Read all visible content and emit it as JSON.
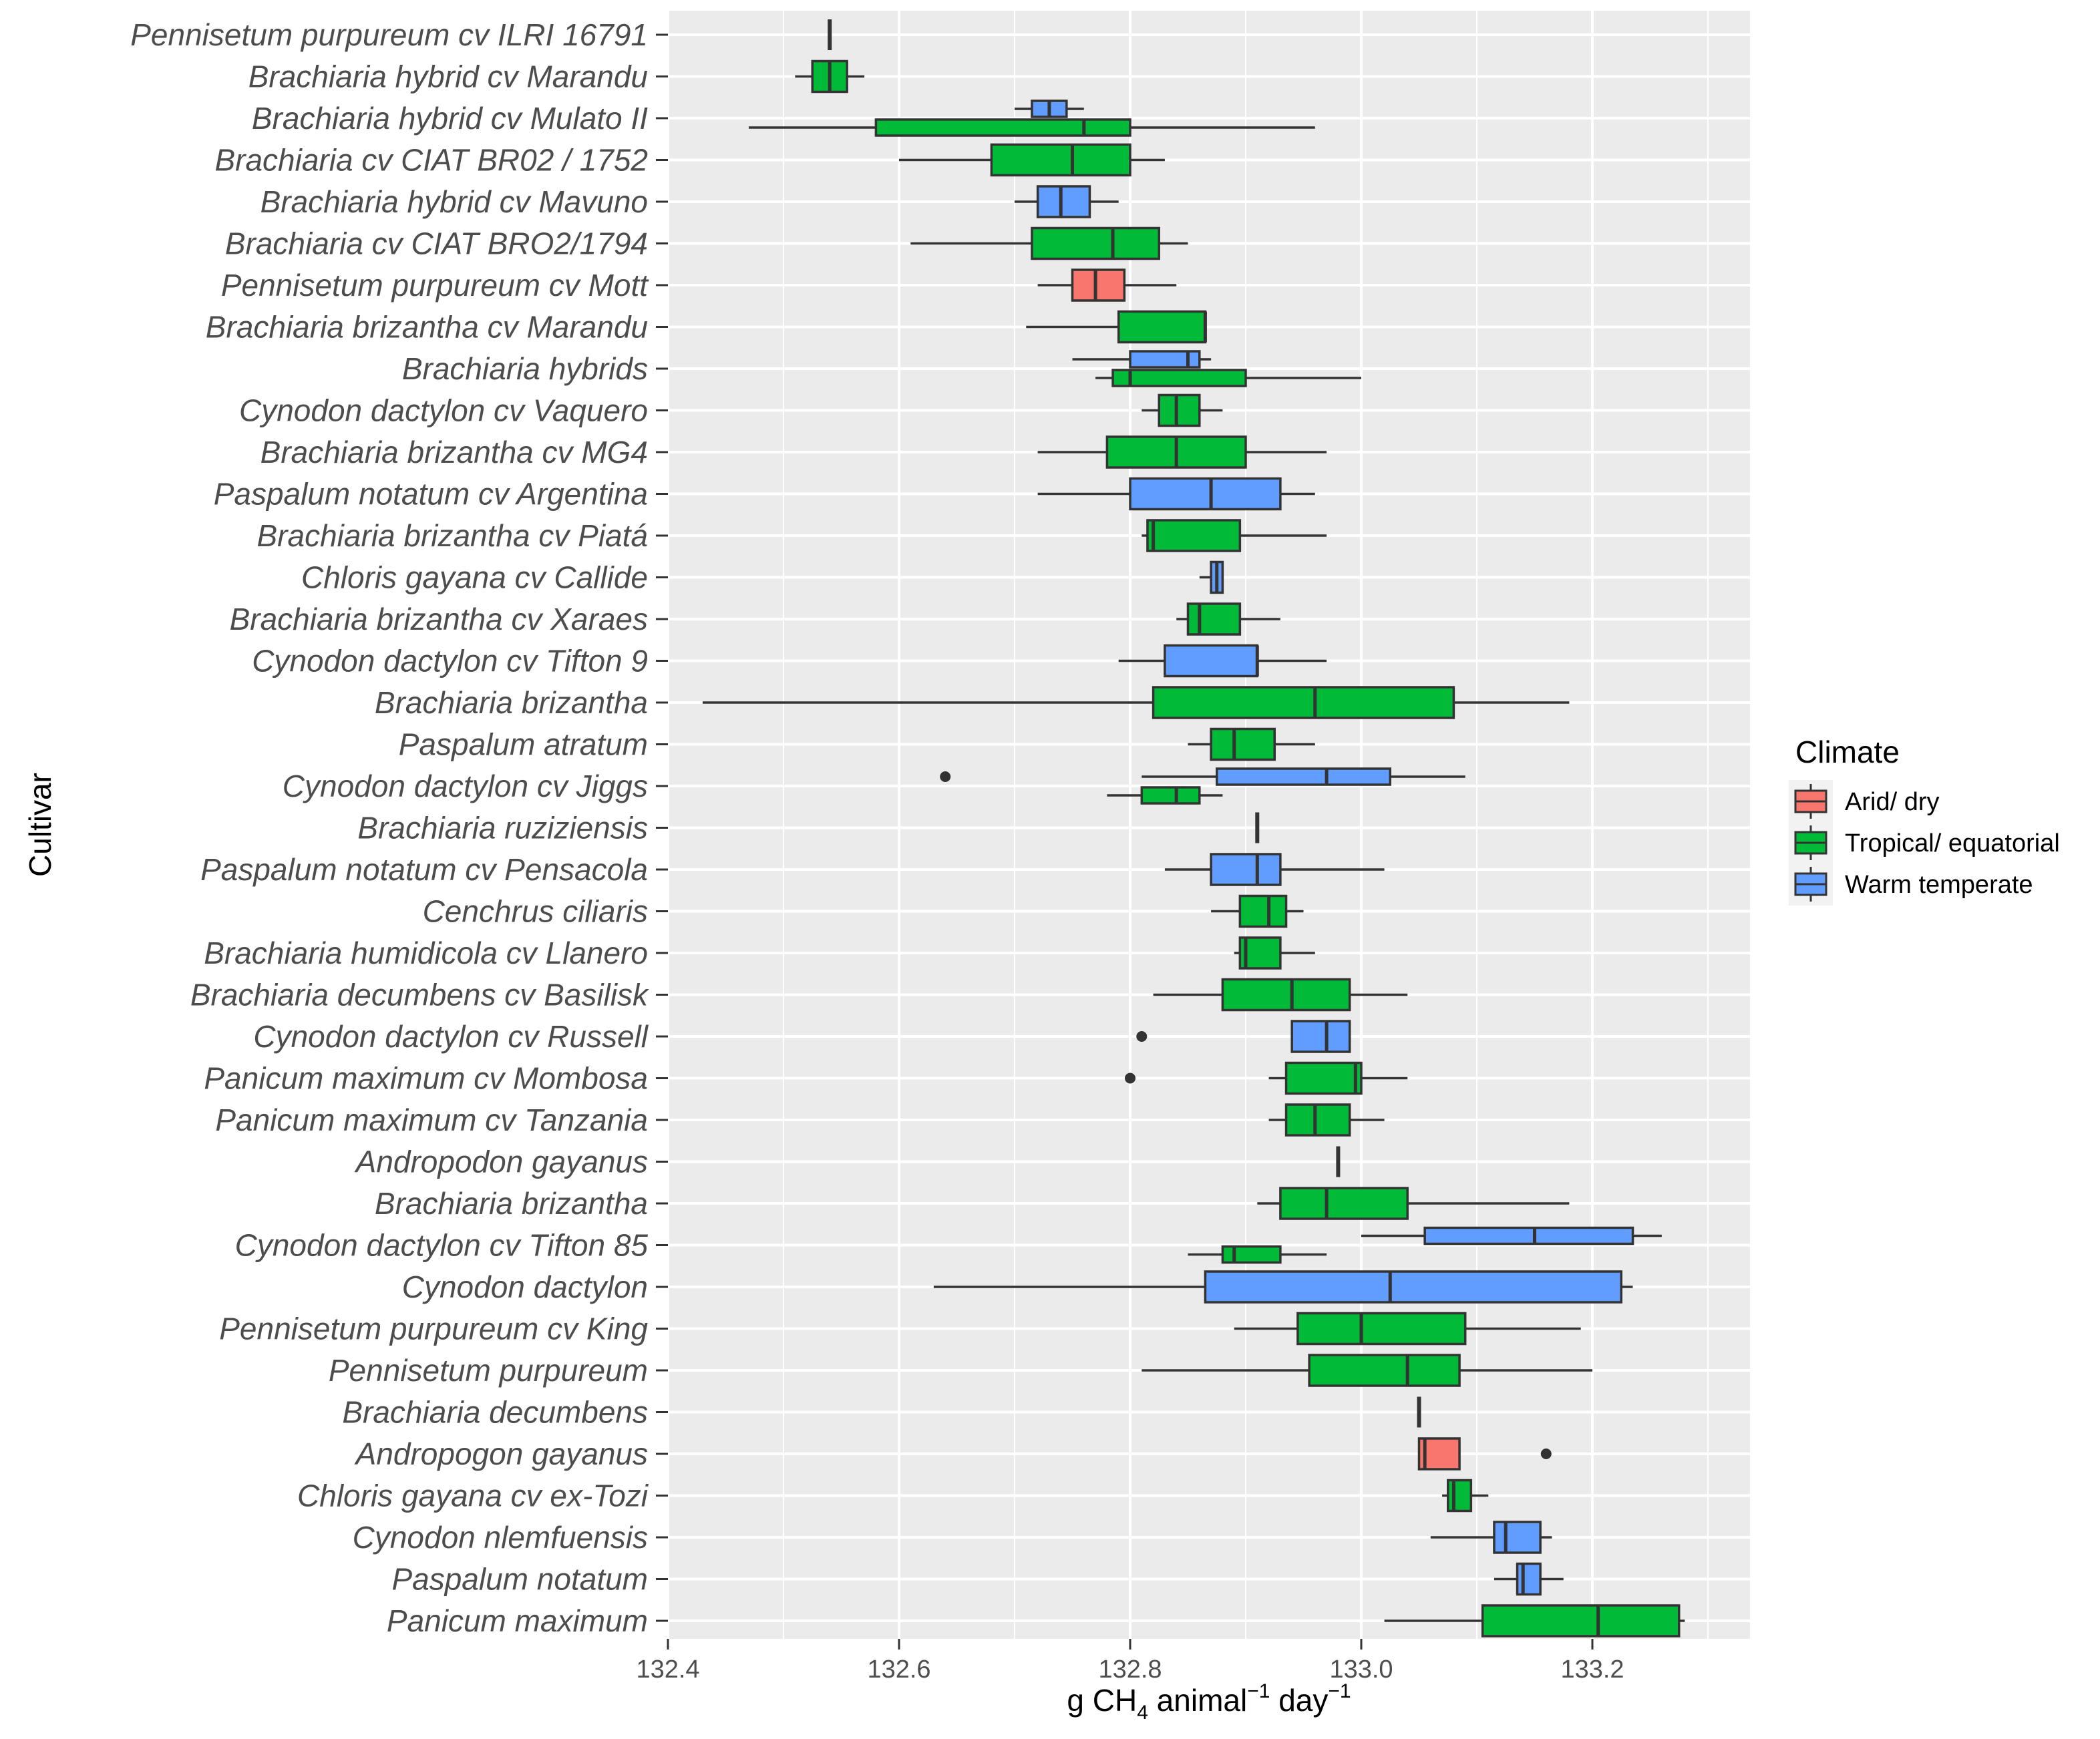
{
  "chart_data": {
    "type": "boxplot",
    "orientation": "horizontal",
    "title": "",
    "xlabel_parts": [
      "g CH",
      "4",
      " animal",
      "−1",
      " day",
      "−1"
    ],
    "ylabel": "Cultivar",
    "xlim": [
      132.4,
      133.3
    ],
    "x_ticks": [
      132.4,
      132.6,
      132.8,
      133.0,
      133.2
    ],
    "x_tick_labels": [
      "132.4",
      "132.6",
      "132.8",
      "133.0",
      "133.2"
    ],
    "grid": true,
    "legend": {
      "title": "Climate",
      "placement": "right",
      "entries": [
        {
          "key": "arid",
          "label": "Arid/ dry"
        },
        {
          "key": "tropical",
          "label": "Tropical/ equatorial"
        },
        {
          "key": "warm",
          "label": "Warm temperate"
        }
      ]
    },
    "colors": {
      "arid": "#F8766D",
      "tropical": "#00BA38",
      "warm": "#619CFF",
      "panel": "#EBEBEB"
    },
    "categories": [
      "Pennisetum purpureum cv ILRI  16791",
      "Brachiaria hybrid cv Marandu",
      "Brachiaria hybrid cv Mulato II",
      "Brachiaria cv  CIAT BR02 / 1752",
      "Brachiaria hybrid cv Mavuno",
      "Brachiaria cv CIAT BRO2/1794",
      "Pennisetum purpureum cv Mott",
      "Brachiaria brizantha cv Marandu",
      "Brachiaria hybrids",
      "Cynodon dactylon cv Vaquero",
      "Brachiaria brizantha cv MG4",
      "Paspalum notatum cv Argentina",
      "Brachiaria brizantha cv Piatá",
      "Chloris gayana cv Callide",
      "Brachiaria brizantha cv Xaraes",
      "Cynodon dactylon cv Tifton 9",
      "Brachiaria brizantha ",
      "Paspalum atratum",
      "Cynodon dactylon cv Jiggs",
      "Brachiaria ruziziensis",
      "Paspalum notatum cv Pensacola",
      "Cenchrus ciliaris",
      "Brachiaria humidicola cv Llanero",
      "Brachiaria decumbens cv Basilisk",
      "Cynodon dactylon cv Russell",
      "Panicum maximum cv Mombosa",
      "Panicum maximum cv Tanzania",
      "Andropodon gayanus",
      "Brachiaria brizantha",
      "Cynodon dactylon cv Tifton 85",
      "Cynodon dactylon",
      "Pennisetum purpureum cv King",
      "Pennisetum purpureum",
      "Brachiaria decumbens",
      "Andropogon gayanus",
      "Chloris gayana cv ex-Tozi",
      "Cynodon nlemfuensis",
      "Paspalum notatum",
      "Panicum maximum "
    ],
    "boxes": [
      {
        "row": 0,
        "climate": "tropical",
        "slot": 0,
        "min": 132.54,
        "q1": 132.54,
        "median": 132.54,
        "q3": 132.54,
        "max": 132.54,
        "outliers": []
      },
      {
        "row": 1,
        "climate": "tropical",
        "slot": 0,
        "min": 132.51,
        "q1": 132.525,
        "median": 132.54,
        "q3": 132.555,
        "max": 132.57,
        "outliers": []
      },
      {
        "row": 2,
        "climate": "warm",
        "slot": -1,
        "min": 132.7,
        "q1": 132.715,
        "median": 132.73,
        "q3": 132.745,
        "max": 132.76,
        "outliers": []
      },
      {
        "row": 2,
        "climate": "tropical",
        "slot": 1,
        "min": 132.47,
        "q1": 132.58,
        "median": 132.76,
        "q3": 132.8,
        "max": 132.96,
        "outliers": []
      },
      {
        "row": 3,
        "climate": "tropical",
        "slot": 0,
        "min": 132.6,
        "q1": 132.68,
        "median": 132.75,
        "q3": 132.8,
        "max": 132.83,
        "outliers": []
      },
      {
        "row": 4,
        "climate": "warm",
        "slot": 0,
        "min": 132.7,
        "q1": 132.72,
        "median": 132.74,
        "q3": 132.765,
        "max": 132.79,
        "outliers": []
      },
      {
        "row": 5,
        "climate": "tropical",
        "slot": 0,
        "min": 132.61,
        "q1": 132.715,
        "median": 132.785,
        "q3": 132.825,
        "max": 132.85,
        "outliers": []
      },
      {
        "row": 6,
        "climate": "arid",
        "slot": 0,
        "min": 132.72,
        "q1": 132.75,
        "median": 132.77,
        "q3": 132.795,
        "max": 132.84,
        "outliers": []
      },
      {
        "row": 7,
        "climate": "tropical",
        "slot": 0,
        "min": 132.71,
        "q1": 132.79,
        "median": 132.865,
        "q3": 132.865,
        "max": 132.865,
        "outliers": []
      },
      {
        "row": 8,
        "climate": "warm",
        "slot": -1,
        "min": 132.75,
        "q1": 132.8,
        "median": 132.85,
        "q3": 132.86,
        "max": 132.87,
        "outliers": []
      },
      {
        "row": 8,
        "climate": "tropical",
        "slot": 1,
        "min": 132.77,
        "q1": 132.785,
        "median": 132.8,
        "q3": 132.9,
        "max": 133.0,
        "outliers": []
      },
      {
        "row": 9,
        "climate": "tropical",
        "slot": 0,
        "min": 132.81,
        "q1": 132.825,
        "median": 132.84,
        "q3": 132.86,
        "max": 132.88,
        "outliers": []
      },
      {
        "row": 10,
        "climate": "tropical",
        "slot": 0,
        "min": 132.72,
        "q1": 132.78,
        "median": 132.84,
        "q3": 132.9,
        "max": 132.97,
        "outliers": []
      },
      {
        "row": 11,
        "climate": "warm",
        "slot": 0,
        "min": 132.72,
        "q1": 132.8,
        "median": 132.87,
        "q3": 132.93,
        "max": 132.96,
        "outliers": []
      },
      {
        "row": 12,
        "climate": "tropical",
        "slot": 0,
        "min": 132.81,
        "q1": 132.815,
        "median": 132.82,
        "q3": 132.895,
        "max": 132.97,
        "outliers": []
      },
      {
        "row": 13,
        "climate": "warm",
        "slot": 0,
        "min": 132.86,
        "q1": 132.87,
        "median": 132.875,
        "q3": 132.88,
        "max": 132.88,
        "outliers": []
      },
      {
        "row": 14,
        "climate": "tropical",
        "slot": 0,
        "min": 132.84,
        "q1": 132.85,
        "median": 132.86,
        "q3": 132.895,
        "max": 132.93,
        "outliers": []
      },
      {
        "row": 15,
        "climate": "warm",
        "slot": 0,
        "min": 132.79,
        "q1": 132.83,
        "median": 132.91,
        "q3": 132.91,
        "max": 132.97,
        "outliers": []
      },
      {
        "row": 16,
        "climate": "tropical",
        "slot": 0,
        "min": 132.43,
        "q1": 132.82,
        "median": 132.96,
        "q3": 133.08,
        "max": 133.18,
        "outliers": []
      },
      {
        "row": 17,
        "climate": "tropical",
        "slot": 0,
        "min": 132.85,
        "q1": 132.87,
        "median": 132.89,
        "q3": 132.925,
        "max": 132.96,
        "outliers": []
      },
      {
        "row": 18,
        "climate": "warm",
        "slot": -1,
        "min": 132.81,
        "q1": 132.875,
        "median": 132.97,
        "q3": 133.025,
        "max": 133.09,
        "outliers": [
          132.64
        ]
      },
      {
        "row": 18,
        "climate": "tropical",
        "slot": 1,
        "min": 132.78,
        "q1": 132.81,
        "median": 132.84,
        "q3": 132.86,
        "max": 132.88,
        "outliers": []
      },
      {
        "row": 19,
        "climate": "tropical",
        "slot": 0,
        "min": 132.91,
        "q1": 132.91,
        "median": 132.91,
        "q3": 132.91,
        "max": 132.91,
        "outliers": []
      },
      {
        "row": 20,
        "climate": "warm",
        "slot": 0,
        "min": 132.83,
        "q1": 132.87,
        "median": 132.91,
        "q3": 132.93,
        "max": 133.02,
        "outliers": []
      },
      {
        "row": 21,
        "climate": "tropical",
        "slot": 0,
        "min": 132.87,
        "q1": 132.895,
        "median": 132.92,
        "q3": 132.935,
        "max": 132.95,
        "outliers": []
      },
      {
        "row": 22,
        "climate": "tropical",
        "slot": 0,
        "min": 132.89,
        "q1": 132.895,
        "median": 132.9,
        "q3": 132.93,
        "max": 132.96,
        "outliers": []
      },
      {
        "row": 23,
        "climate": "tropical",
        "slot": 0,
        "min": 132.82,
        "q1": 132.88,
        "median": 132.94,
        "q3": 132.99,
        "max": 133.04,
        "outliers": []
      },
      {
        "row": 24,
        "climate": "warm",
        "slot": 0,
        "min": 132.94,
        "q1": 132.94,
        "median": 132.97,
        "q3": 132.99,
        "max": 132.99,
        "outliers": [
          132.81
        ]
      },
      {
        "row": 25,
        "climate": "tropical",
        "slot": 0,
        "min": 132.92,
        "q1": 132.935,
        "median": 132.995,
        "q3": 133.0,
        "max": 133.04,
        "outliers": [
          132.8
        ]
      },
      {
        "row": 26,
        "climate": "tropical",
        "slot": 0,
        "min": 132.92,
        "q1": 132.935,
        "median": 132.96,
        "q3": 132.99,
        "max": 133.02,
        "outliers": []
      },
      {
        "row": 27,
        "climate": "tropical",
        "slot": 0,
        "min": 132.98,
        "q1": 132.98,
        "median": 132.98,
        "q3": 132.98,
        "max": 132.98,
        "outliers": []
      },
      {
        "row": 28,
        "climate": "tropical",
        "slot": 0,
        "min": 132.91,
        "q1": 132.93,
        "median": 132.97,
        "q3": 133.04,
        "max": 133.18,
        "outliers": []
      },
      {
        "row": 29,
        "climate": "warm",
        "slot": -1,
        "min": 133.0,
        "q1": 133.055,
        "median": 133.15,
        "q3": 133.235,
        "max": 133.26,
        "outliers": []
      },
      {
        "row": 29,
        "climate": "tropical",
        "slot": 1,
        "min": 132.85,
        "q1": 132.88,
        "median": 132.89,
        "q3": 132.93,
        "max": 132.97,
        "outliers": []
      },
      {
        "row": 30,
        "climate": "warm",
        "slot": 0,
        "min": 132.63,
        "q1": 132.865,
        "median": 133.025,
        "q3": 133.225,
        "max": 133.235,
        "outliers": []
      },
      {
        "row": 31,
        "climate": "tropical",
        "slot": 0,
        "min": 132.89,
        "q1": 132.945,
        "median": 133.0,
        "q3": 133.09,
        "max": 133.19,
        "outliers": []
      },
      {
        "row": 32,
        "climate": "tropical",
        "slot": 0,
        "min": 132.81,
        "q1": 132.955,
        "median": 133.04,
        "q3": 133.085,
        "max": 133.2,
        "outliers": []
      },
      {
        "row": 33,
        "climate": "tropical",
        "slot": 0,
        "min": 133.05,
        "q1": 133.05,
        "median": 133.05,
        "q3": 133.05,
        "max": 133.05,
        "outliers": []
      },
      {
        "row": 34,
        "climate": "arid",
        "slot": 0,
        "min": 133.05,
        "q1": 133.05,
        "median": 133.055,
        "q3": 133.085,
        "max": 133.085,
        "outliers": [
          133.16
        ]
      },
      {
        "row": 35,
        "climate": "tropical",
        "slot": 0,
        "min": 133.07,
        "q1": 133.075,
        "median": 133.08,
        "q3": 133.095,
        "max": 133.11,
        "outliers": []
      },
      {
        "row": 36,
        "climate": "warm",
        "slot": 0,
        "min": 133.06,
        "q1": 133.115,
        "median": 133.125,
        "q3": 133.155,
        "max": 133.165,
        "outliers": []
      },
      {
        "row": 37,
        "climate": "warm",
        "slot": 0,
        "min": 133.115,
        "q1": 133.135,
        "median": 133.14,
        "q3": 133.155,
        "max": 133.175,
        "outliers": []
      },
      {
        "row": 38,
        "climate": "tropical",
        "slot": 0,
        "min": 133.02,
        "q1": 133.105,
        "median": 133.205,
        "q3": 133.275,
        "max": 133.28,
        "outliers": []
      }
    ]
  }
}
